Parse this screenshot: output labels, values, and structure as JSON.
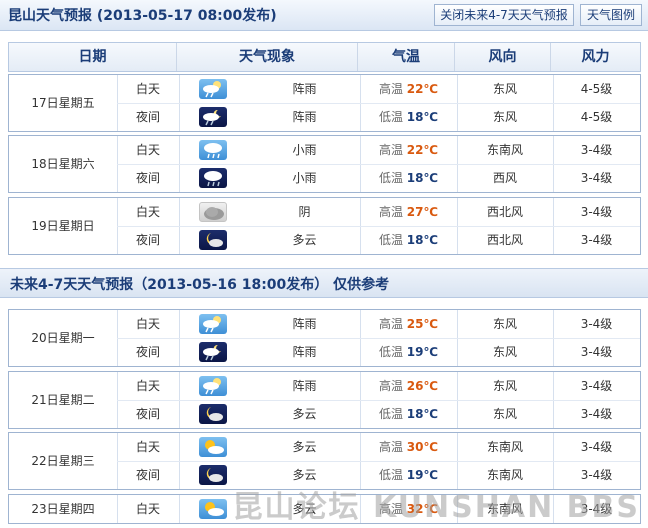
{
  "header": {
    "title": "昆山天气预报 (2013-05-17  08:00发布)",
    "close_button": "关闭未来4-7天天气预报",
    "legend_button": "天气图例"
  },
  "columns": [
    "日期",
    "天气现象",
    "气温",
    "风向",
    "风力"
  ],
  "forecast_3day": [
    {
      "date": "17日星期五",
      "day": {
        "period": "白天",
        "icon": "shower-day-icon",
        "weather": "阵雨",
        "temp_label": "高温",
        "temp": "22℃",
        "wind_dir": "东风",
        "wind_force": "4-5级"
      },
      "night": {
        "period": "夜间",
        "icon": "shower-night-icon",
        "weather": "阵雨",
        "temp_label": "低温",
        "temp": "18℃",
        "wind_dir": "东风",
        "wind_force": "4-5级"
      }
    },
    {
      "date": "18日星期六",
      "day": {
        "period": "白天",
        "icon": "light-rain-day-icon",
        "weather": "小雨",
        "temp_label": "高温",
        "temp": "22℃",
        "wind_dir": "东南风",
        "wind_force": "3-4级"
      },
      "night": {
        "period": "夜间",
        "icon": "light-rain-night-icon",
        "weather": "小雨",
        "temp_label": "低温",
        "temp": "18℃",
        "wind_dir": "西风",
        "wind_force": "3-4级"
      }
    },
    {
      "date": "19日星期日",
      "day": {
        "period": "白天",
        "icon": "overcast-icon",
        "weather": "阴",
        "temp_label": "高温",
        "temp": "27℃",
        "wind_dir": "西北风",
        "wind_force": "3-4级"
      },
      "night": {
        "period": "夜间",
        "icon": "cloudy-night-icon",
        "weather": "多云",
        "temp_label": "低温",
        "temp": "18℃",
        "wind_dir": "西北风",
        "wind_force": "3-4级"
      }
    }
  ],
  "section2": {
    "title": "未来4-7天天气预报（2013-05-16 18:00发布）     仅供参考"
  },
  "forecast_4to7": [
    {
      "date": "20日星期一",
      "day": {
        "period": "白天",
        "icon": "shower-day-icon",
        "weather": "阵雨",
        "temp_label": "高温",
        "temp": "25℃",
        "wind_dir": "东风",
        "wind_force": "3-4级"
      },
      "night": {
        "period": "夜间",
        "icon": "shower-night-icon",
        "weather": "阵雨",
        "temp_label": "低温",
        "temp": "19℃",
        "wind_dir": "东风",
        "wind_force": "3-4级"
      }
    },
    {
      "date": "21日星期二",
      "day": {
        "period": "白天",
        "icon": "shower-day-icon",
        "weather": "阵雨",
        "temp_label": "高温",
        "temp": "26℃",
        "wind_dir": "东风",
        "wind_force": "3-4级"
      },
      "night": {
        "period": "夜间",
        "icon": "cloudy-night-icon",
        "weather": "多云",
        "temp_label": "低温",
        "temp": "18℃",
        "wind_dir": "东风",
        "wind_force": "3-4级"
      }
    },
    {
      "date": "22日星期三",
      "day": {
        "period": "白天",
        "icon": "cloudy-day-icon",
        "weather": "多云",
        "temp_label": "高温",
        "temp": "30℃",
        "wind_dir": "东南风",
        "wind_force": "3-4级"
      },
      "night": {
        "period": "夜间",
        "icon": "cloudy-night-icon",
        "weather": "多云",
        "temp_label": "低温",
        "temp": "19℃",
        "wind_dir": "东南风",
        "wind_force": "3-4级"
      }
    },
    {
      "date": "23日星期四",
      "day": {
        "period": "白天",
        "icon": "cloudy-day-icon",
        "weather": "多云",
        "temp_label": "高温",
        "temp": "32℃",
        "wind_dir": "东南风",
        "wind_force": "3-4级"
      }
    }
  ],
  "watermark": "昆山论坛 KUNSHAN BBS",
  "colors": {
    "accent": "#1b3d78",
    "high_temp": "#d9590f",
    "border": "#9fb4d1"
  }
}
